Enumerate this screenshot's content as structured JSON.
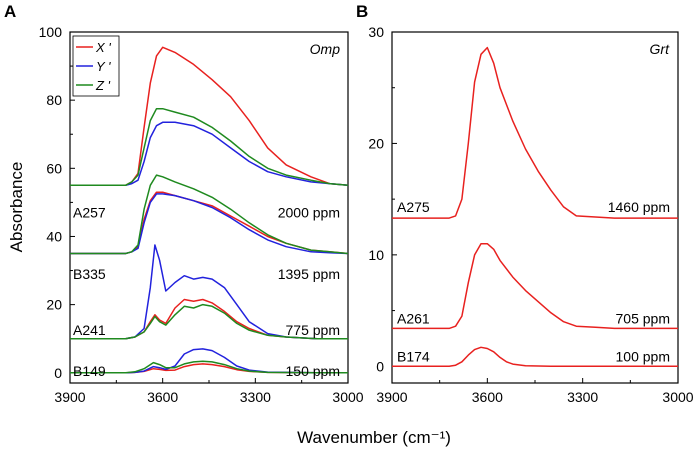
{
  "chart_data": [
    {
      "type": "line",
      "panel": "A",
      "title": "Omp",
      "xlabel": "Wavenumber (cm⁻¹)",
      "ylabel": "Absorbance",
      "xlim": [
        3900,
        3000
      ],
      "ylim": [
        -3,
        100
      ],
      "xticks": [
        "3900",
        "3600",
        "3300",
        "3000"
      ],
      "yticks": [
        "0",
        "20",
        "40",
        "60",
        "80",
        "100"
      ],
      "legend": [
        {
          "name": "X '",
          "color": "#e8211f"
        },
        {
          "name": "Y '",
          "color": "#2222dd"
        },
        {
          "name": "Z '",
          "color": "#1f8a1f"
        }
      ],
      "sample_labels": [
        {
          "text": "A257",
          "ppm": "2000 ppm",
          "y": 47
        },
        {
          "text": "B335",
          "ppm": "1395 ppm",
          "y": 29
        },
        {
          "text": "A241",
          "ppm": "775 ppm",
          "y": 12.5
        },
        {
          "text": "B149",
          "ppm": "150 ppm",
          "y": 0.5
        }
      ],
      "series": [
        {
          "sample": "A257",
          "name": "X '",
          "color": "#e8211f",
          "x": [
            3900,
            3720,
            3700,
            3680,
            3660,
            3640,
            3620,
            3600,
            3560,
            3500,
            3440,
            3380,
            3320,
            3260,
            3200,
            3120,
            3060,
            3000
          ],
          "y": [
            55,
            55,
            56,
            58.5,
            72,
            85,
            93,
            95.5,
            94,
            90.5,
            86,
            81,
            74,
            66,
            61,
            57.5,
            55.5,
            55
          ]
        },
        {
          "sample": "A257",
          "name": "Y '",
          "color": "#2222dd",
          "x": [
            3900,
            3720,
            3700,
            3680,
            3660,
            3640,
            3620,
            3600,
            3560,
            3500,
            3440,
            3380,
            3320,
            3260,
            3200,
            3120,
            3060,
            3000
          ],
          "y": [
            55,
            55,
            55.5,
            56.5,
            62,
            69,
            72.5,
            73.5,
            73.5,
            72.5,
            70,
            66,
            62,
            59,
            57.5,
            56,
            55.5,
            55
          ]
        },
        {
          "sample": "A257",
          "name": "Z '",
          "color": "#1f8a1f",
          "x": [
            3900,
            3720,
            3700,
            3680,
            3660,
            3640,
            3620,
            3600,
            3560,
            3500,
            3440,
            3380,
            3320,
            3260,
            3200,
            3120,
            3060,
            3000
          ],
          "y": [
            55,
            55,
            56,
            58,
            66,
            74,
            77.5,
            77.5,
            76.5,
            75,
            72,
            68,
            63.5,
            60,
            58,
            56.5,
            55.5,
            55
          ]
        },
        {
          "sample": "B335",
          "name": "X '",
          "color": "#e8211f",
          "x": [
            3900,
            3720,
            3700,
            3680,
            3660,
            3640,
            3620,
            3600,
            3560,
            3500,
            3440,
            3380,
            3320,
            3260,
            3200,
            3120,
            3060,
            3000
          ],
          "y": [
            35,
            35,
            35.5,
            37,
            45,
            50.5,
            53,
            53,
            52,
            50.5,
            49,
            46,
            43,
            40,
            38,
            36,
            35.5,
            35
          ]
        },
        {
          "sample": "B335",
          "name": "Y '",
          "color": "#2222dd",
          "x": [
            3900,
            3720,
            3700,
            3680,
            3660,
            3640,
            3620,
            3600,
            3560,
            3500,
            3440,
            3380,
            3320,
            3260,
            3200,
            3120,
            3060,
            3000
          ],
          "y": [
            35,
            35,
            35.5,
            36.5,
            44,
            50,
            52.5,
            52.5,
            52,
            50.5,
            48.5,
            45.5,
            42,
            39,
            37,
            35.5,
            35.2,
            35
          ]
        },
        {
          "sample": "B335",
          "name": "Z '",
          "color": "#1f8a1f",
          "x": [
            3900,
            3720,
            3700,
            3680,
            3660,
            3640,
            3620,
            3600,
            3560,
            3500,
            3440,
            3380,
            3320,
            3260,
            3200,
            3120,
            3060,
            3000
          ],
          "y": [
            35,
            35,
            35.5,
            37.5,
            48,
            55,
            58,
            57.5,
            56,
            54,
            51.5,
            48,
            44,
            40.5,
            38,
            36,
            35.5,
            35
          ]
        },
        {
          "sample": "A241",
          "name": "X '",
          "color": "#e8211f",
          "x": [
            3900,
            3720,
            3690,
            3660,
            3640,
            3625,
            3610,
            3590,
            3560,
            3530,
            3500,
            3470,
            3440,
            3400,
            3360,
            3320,
            3260,
            3200,
            3100,
            3000
          ],
          "y": [
            10,
            10,
            10.5,
            12,
            15,
            17,
            15.5,
            14.5,
            19,
            21.5,
            21,
            21.5,
            20.5,
            18,
            15,
            13,
            11,
            10.5,
            10,
            10
          ]
        },
        {
          "sample": "A241",
          "name": "Y '",
          "color": "#2222dd",
          "x": [
            3900,
            3720,
            3690,
            3660,
            3640,
            3625,
            3610,
            3590,
            3560,
            3530,
            3500,
            3470,
            3440,
            3400,
            3360,
            3320,
            3260,
            3200,
            3100,
            3000
          ],
          "y": [
            10,
            10,
            10.5,
            13,
            25,
            37.5,
            33,
            24,
            26.5,
            28.5,
            27.5,
            28,
            27.5,
            25,
            20,
            15,
            11.5,
            10.5,
            10,
            10
          ]
        },
        {
          "sample": "A241",
          "name": "Z '",
          "color": "#1f8a1f",
          "x": [
            3900,
            3720,
            3690,
            3660,
            3640,
            3625,
            3610,
            3590,
            3560,
            3530,
            3500,
            3470,
            3440,
            3400,
            3360,
            3320,
            3260,
            3200,
            3100,
            3000
          ],
          "y": [
            10,
            10,
            10.5,
            12,
            14.5,
            16.5,
            15,
            14,
            17,
            19.5,
            19,
            20,
            19.5,
            17.5,
            14.5,
            12.5,
            11,
            10.5,
            10,
            10
          ]
        },
        {
          "sample": "B149",
          "name": "X '",
          "color": "#e8211f",
          "x": [
            3900,
            3720,
            3690,
            3660,
            3630,
            3610,
            3590,
            3560,
            3530,
            3500,
            3470,
            3440,
            3400,
            3360,
            3320,
            3260,
            3100,
            3000
          ],
          "y": [
            0,
            0,
            0.1,
            0.4,
            1.2,
            1.0,
            0.7,
            0.8,
            1.8,
            2.4,
            2.6,
            2.4,
            1.8,
            0.9,
            0.4,
            0.1,
            0,
            0
          ]
        },
        {
          "sample": "B149",
          "name": "Y '",
          "color": "#2222dd",
          "x": [
            3900,
            3720,
            3690,
            3660,
            3630,
            3610,
            3590,
            3560,
            3530,
            3500,
            3470,
            3440,
            3400,
            3360,
            3320,
            3260,
            3100,
            3000
          ],
          "y": [
            0,
            0,
            0.1,
            0.5,
            1.8,
            1.5,
            1.0,
            2.0,
            5.5,
            6.8,
            7.0,
            6.5,
            4.5,
            2.0,
            0.8,
            0.2,
            0,
            0
          ]
        },
        {
          "sample": "B149",
          "name": "Z '",
          "color": "#1f8a1f",
          "x": [
            3900,
            3720,
            3690,
            3660,
            3630,
            3610,
            3590,
            3560,
            3530,
            3500,
            3470,
            3440,
            3400,
            3360,
            3320,
            3260,
            3100,
            3000
          ],
          "y": [
            0,
            0,
            0.3,
            1.2,
            3.0,
            2.4,
            1.5,
            1.5,
            2.6,
            3.2,
            3.4,
            3.2,
            2.4,
            1.2,
            0.5,
            0.1,
            0,
            0
          ]
        }
      ]
    },
    {
      "type": "line",
      "panel": "B",
      "title": "Grt",
      "xlabel": "Wavenumber (cm⁻¹)",
      "ylabel": "",
      "xlim": [
        3900,
        3000
      ],
      "ylim": [
        -1.5,
        30
      ],
      "xticks": [
        "3900",
        "3600",
        "3300",
        "3000"
      ],
      "yticks": [
        "0",
        "10",
        "20",
        "30"
      ],
      "sample_labels": [
        {
          "text": "A275",
          "ppm": "1460 ppm",
          "y": 14.3
        },
        {
          "text": "A261",
          "ppm": "705 ppm",
          "y": 4.3
        },
        {
          "text": "B174",
          "ppm": "100 ppm",
          "y": 0.9
        }
      ],
      "series": [
        {
          "sample": "A275",
          "name": "X '",
          "color": "#e8211f",
          "x": [
            3900,
            3720,
            3700,
            3680,
            3660,
            3640,
            3620,
            3600,
            3580,
            3560,
            3520,
            3480,
            3440,
            3400,
            3360,
            3320,
            3260,
            3200,
            3100,
            3000
          ],
          "y": [
            13.3,
            13.3,
            13.5,
            15,
            20,
            25.5,
            28,
            28.6,
            27.2,
            25,
            22,
            19.5,
            17.5,
            15.8,
            14.3,
            13.5,
            13.4,
            13.3,
            13.3,
            13.3
          ]
        },
        {
          "sample": "A261",
          "name": "X '",
          "color": "#e8211f",
          "x": [
            3900,
            3720,
            3700,
            3680,
            3660,
            3640,
            3620,
            3600,
            3580,
            3560,
            3520,
            3480,
            3440,
            3400,
            3360,
            3320,
            3260,
            3200,
            3100,
            3000
          ],
          "y": [
            3.4,
            3.4,
            3.6,
            4.5,
            7.5,
            10,
            11,
            11,
            10.5,
            9.5,
            8,
            6.8,
            5.8,
            4.8,
            4,
            3.6,
            3.5,
            3.4,
            3.4,
            3.4
          ]
        },
        {
          "sample": "B174",
          "name": "X '",
          "color": "#e8211f",
          "x": [
            3900,
            3720,
            3700,
            3680,
            3660,
            3640,
            3620,
            3600,
            3580,
            3560,
            3540,
            3520,
            3480,
            3400,
            3300,
            3000
          ],
          "y": [
            0,
            0,
            0.1,
            0.4,
            1.0,
            1.5,
            1.7,
            1.6,
            1.3,
            0.8,
            0.4,
            0.2,
            0.05,
            0,
            0,
            0
          ]
        }
      ]
    }
  ]
}
